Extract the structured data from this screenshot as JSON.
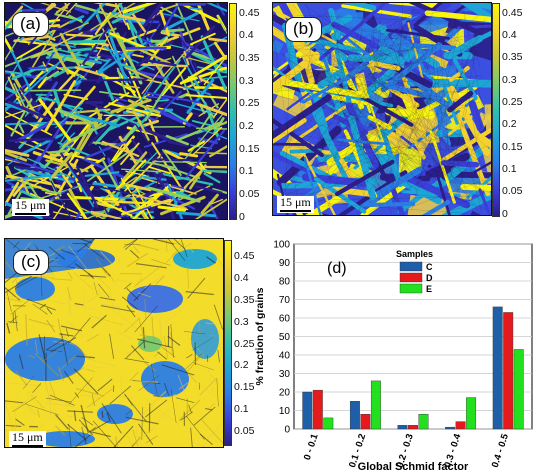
{
  "maps": [
    {
      "id": "a",
      "label": "(a)",
      "scalebar": "15 μm"
    },
    {
      "id": "b",
      "label": "(b)",
      "scalebar": "15 μm"
    },
    {
      "id": "c",
      "label": "(c)",
      "scalebar": "15 μm"
    }
  ],
  "colorbar": {
    "ticks": [
      "0.45",
      "0.4",
      "0.35",
      "0.3",
      "0.25",
      "0.2",
      "0.15",
      "0.1",
      "0.05",
      "0"
    ],
    "ticks_c": [
      "0.45",
      "0.4",
      "0.35",
      "0.3",
      "0.25",
      "0.2",
      "0.15",
      "0.1",
      "0.05"
    ],
    "colors": [
      "#2c1f8c",
      "#3a3fd9",
      "#2b7de6",
      "#1ea4d6",
      "#2fbfb0",
      "#78c96f",
      "#c6c63a",
      "#f3d22f",
      "#f9f50f"
    ]
  },
  "chart_data": {
    "type": "bar",
    "panel_label": "(d)",
    "categories": [
      "0 - 0.1",
      "0.1 - 0.2",
      "0.2 - 0.3",
      "0.3 - 0.4",
      "0.4 - 0.5"
    ],
    "series": [
      {
        "name": "C",
        "color": "#1f5ea8",
        "values": [
          20,
          15,
          2,
          1,
          66
        ]
      },
      {
        "name": "D",
        "color": "#e41a1c",
        "values": [
          21,
          8,
          2,
          4,
          63
        ]
      },
      {
        "name": "E",
        "color": "#22e01e",
        "values": [
          6,
          26,
          8,
          17,
          43
        ]
      }
    ],
    "legend_title": "Samples",
    "legend_position": "top-center",
    "xlabel": "Global Schmid factor",
    "ylabel": "%  fraction of grains",
    "ylim": [
      0,
      100
    ],
    "yticks": [
      0,
      10,
      20,
      30,
      40,
      50,
      60,
      70,
      80,
      90,
      100
    ]
  }
}
